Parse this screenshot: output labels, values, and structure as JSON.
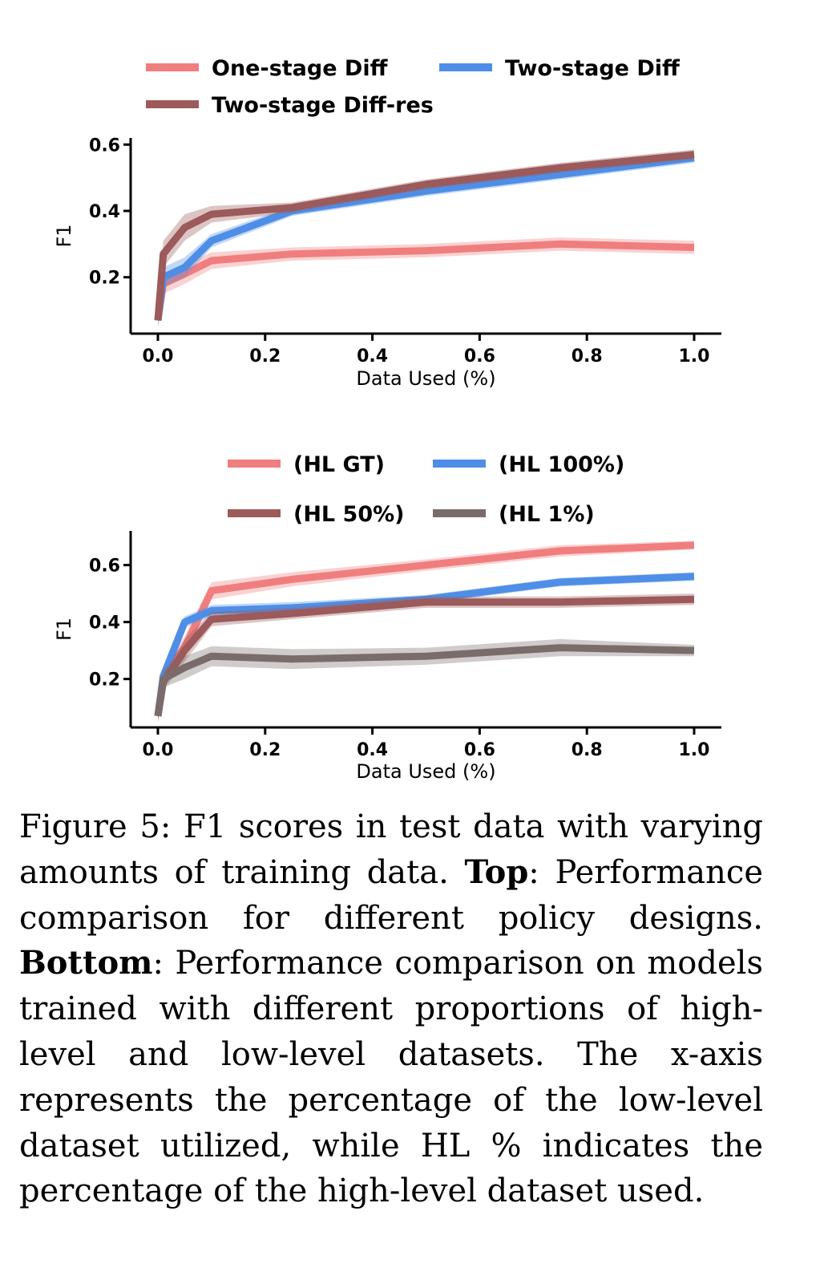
{
  "chart_data": [
    {
      "type": "line",
      "xlabel": "Data Used (%)",
      "ylabel": "F1",
      "xlim": [
        -0.05,
        1.05
      ],
      "ylim": [
        0.03,
        0.62
      ],
      "xticks": [
        0.0,
        0.2,
        0.4,
        0.6,
        0.8,
        1.0
      ],
      "xtick_labels": [
        "0.0",
        "0.2",
        "0.4",
        "0.6",
        "0.8",
        "1.0"
      ],
      "yticks": [
        0.2,
        0.4,
        0.6
      ],
      "ytick_labels": [
        "0.2",
        "0.4",
        "0.6"
      ],
      "legend_position": "top",
      "x": [
        0.0,
        0.01,
        0.05,
        0.1,
        0.25,
        0.5,
        0.75,
        1.0
      ],
      "series": [
        {
          "name": "One-stage Diff",
          "color": "#f07e7e",
          "values": [
            0.07,
            0.18,
            0.21,
            0.25,
            0.27,
            0.28,
            0.3,
            0.29
          ],
          "band": [
            0.02,
            0.03,
            0.03,
            0.025,
            0.02,
            0.02,
            0.02,
            0.02
          ]
        },
        {
          "name": "Two-stage Diff",
          "color": "#4f8ee6",
          "values": [
            0.07,
            0.2,
            0.23,
            0.31,
            0.4,
            0.46,
            0.51,
            0.56
          ],
          "band": [
            0.02,
            0.03,
            0.03,
            0.02,
            0.015,
            0.015,
            0.015,
            0.015
          ]
        },
        {
          "name": "Two-stage Diff-res",
          "color": "#9c5a5a",
          "values": [
            0.07,
            0.27,
            0.35,
            0.39,
            0.41,
            0.48,
            0.53,
            0.57
          ],
          "band": [
            0.02,
            0.04,
            0.04,
            0.025,
            0.015,
            0.015,
            0.015,
            0.015
          ]
        }
      ]
    },
    {
      "type": "line",
      "xlabel": "Data Used (%)",
      "ylabel": "F1",
      "xlim": [
        -0.05,
        1.05
      ],
      "ylim": [
        0.03,
        0.72
      ],
      "xticks": [
        0.0,
        0.2,
        0.4,
        0.6,
        0.8,
        1.0
      ],
      "xtick_labels": [
        "0.0",
        "0.2",
        "0.4",
        "0.6",
        "0.8",
        "1.0"
      ],
      "yticks": [
        0.2,
        0.4,
        0.6
      ],
      "ytick_labels": [
        "0.2",
        "0.4",
        "0.6"
      ],
      "legend_position": "top",
      "x": [
        0.0,
        0.01,
        0.05,
        0.1,
        0.25,
        0.5,
        0.75,
        1.0
      ],
      "series": [
        {
          "name": "(HL GT)",
          "color": "#f07e7e",
          "values": [
            0.07,
            0.21,
            0.31,
            0.51,
            0.55,
            0.6,
            0.65,
            0.67
          ],
          "band": [
            0.02,
            0.03,
            0.04,
            0.03,
            0.025,
            0.02,
            0.02,
            0.015
          ]
        },
        {
          "name": "(HL 100%)",
          "color": "#4f8ee6",
          "values": [
            0.07,
            0.21,
            0.4,
            0.44,
            0.45,
            0.48,
            0.54,
            0.56
          ],
          "band": [
            0.02,
            0.03,
            0.02,
            0.02,
            0.02,
            0.015,
            0.015,
            0.015
          ]
        },
        {
          "name": "(HL 50%)",
          "color": "#9c5a5a",
          "values": [
            0.07,
            0.19,
            0.3,
            0.41,
            0.43,
            0.47,
            0.47,
            0.48
          ],
          "band": [
            0.02,
            0.03,
            0.04,
            0.025,
            0.02,
            0.02,
            0.02,
            0.02
          ]
        },
        {
          "name": "(HL 1%)",
          "color": "#7b6c6c",
          "values": [
            0.07,
            0.2,
            0.24,
            0.28,
            0.27,
            0.28,
            0.31,
            0.3
          ],
          "band": [
            0.02,
            0.03,
            0.04,
            0.035,
            0.035,
            0.03,
            0.03,
            0.02
          ]
        }
      ]
    }
  ],
  "caption": {
    "figure_label": "Figure 5:",
    "text_1": " F1 scores in test data with varying amounts of training data. ",
    "top_label": "Top",
    "text_2": ": Performance comparison for different policy designs. ",
    "bottom_label": "Bottom",
    "text_3": ": Performance comparison on models trained with different proportions of high-level and low-level datasets. The x-axis represents the percentage of the low-level dataset utilized, while HL % indicates the percentage of the high-level dataset used."
  }
}
